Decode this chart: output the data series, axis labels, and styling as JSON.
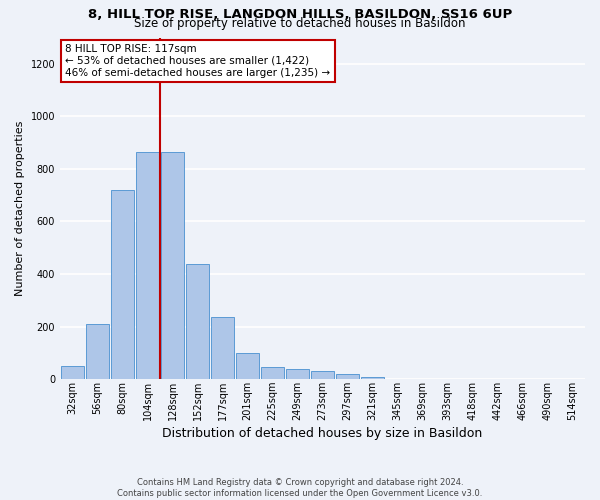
{
  "title_line1": "8, HILL TOP RISE, LANGDON HILLS, BASILDON, SS16 6UP",
  "title_line2": "Size of property relative to detached houses in Basildon",
  "xlabel": "Distribution of detached houses by size in Basildon",
  "ylabel": "Number of detached properties",
  "footnote": "Contains HM Land Registry data © Crown copyright and database right 2024.\nContains public sector information licensed under the Open Government Licence v3.0.",
  "bar_labels": [
    "32sqm",
    "56sqm",
    "80sqm",
    "104sqm",
    "128sqm",
    "152sqm",
    "177sqm",
    "201sqm",
    "225sqm",
    "249sqm",
    "273sqm",
    "297sqm",
    "321sqm",
    "345sqm",
    "369sqm",
    "393sqm",
    "418sqm",
    "442sqm",
    "466sqm",
    "490sqm",
    "514sqm"
  ],
  "bar_values": [
    50,
    210,
    720,
    865,
    865,
    440,
    235,
    100,
    45,
    40,
    30,
    20,
    10,
    0,
    0,
    0,
    0,
    0,
    0,
    0,
    0
  ],
  "bar_color": "#aec6e8",
  "bar_edge_color": "#5b9bd5",
  "vline_x": 3.5,
  "vline_color": "#c00000",
  "annotation_text": "8 HILL TOP RISE: 117sqm\n← 53% of detached houses are smaller (1,422)\n46% of semi-detached houses are larger (1,235) →",
  "annotation_box_edgecolor": "#c00000",
  "ylim": [
    0,
    1300
  ],
  "yticks": [
    0,
    200,
    400,
    600,
    800,
    1000,
    1200
  ],
  "background_color": "#eef2f9",
  "grid_color": "#ffffff",
  "title_fontsize": 9.5,
  "subtitle_fontsize": 8.5,
  "ylabel_fontsize": 8,
  "xlabel_fontsize": 9,
  "tick_fontsize": 7,
  "annotation_fontsize": 7.5,
  "footnote_fontsize": 6
}
